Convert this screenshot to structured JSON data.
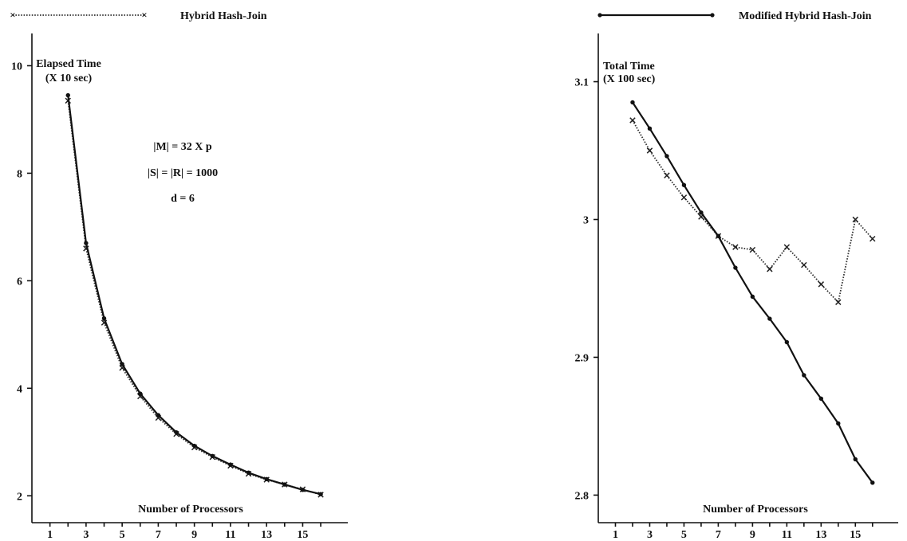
{
  "legend": {
    "dotted_label": "Hybrid Hash-Join",
    "solid_label": "Modified Hybrid Hash-Join"
  },
  "params": {
    "line1": "|M| = 32 X p",
    "line2": "|S| = |R| = 1000",
    "line3": "d = 6"
  },
  "chart_data": [
    {
      "type": "line",
      "ylabel_line1": "Elapsed Time",
      "ylabel_line2": "(X 10 sec)",
      "xlabel": "Number of Processors",
      "xlim": [
        0,
        17.5
      ],
      "ylim": [
        1.5,
        10.6
      ],
      "xticks": [
        1,
        3,
        5,
        7,
        9,
        11,
        13,
        15
      ],
      "yticks": [
        2,
        4,
        6,
        8,
        10
      ],
      "series": [
        {
          "name": "Hybrid Hash-Join",
          "style": "dotted",
          "marker": "x",
          "x": [
            2,
            3,
            4,
            5,
            6,
            7,
            8,
            9,
            10,
            11,
            12,
            13,
            14,
            15,
            16
          ],
          "y": [
            9.35,
            6.6,
            5.22,
            4.38,
            3.85,
            3.45,
            3.15,
            2.9,
            2.72,
            2.56,
            2.41,
            2.3,
            2.21,
            2.12,
            2.02
          ]
        },
        {
          "name": "Modified Hybrid Hash-Join",
          "style": "solid",
          "marker": "dot",
          "x": [
            2,
            3,
            4,
            5,
            6,
            7,
            8,
            9,
            10,
            11,
            12,
            13,
            14,
            15,
            16
          ],
          "y": [
            9.45,
            6.7,
            5.3,
            4.45,
            3.9,
            3.5,
            3.18,
            2.93,
            2.74,
            2.58,
            2.43,
            2.31,
            2.21,
            2.11,
            2.03
          ]
        }
      ]
    },
    {
      "type": "line",
      "ylabel_line1": "Total Time",
      "ylabel_line2": "(X 100 sec)",
      "xlabel": "Number of Processors",
      "xlim": [
        0,
        17.5
      ],
      "ylim": [
        2.78,
        3.135
      ],
      "xticks": [
        1,
        3,
        5,
        7,
        9,
        11,
        13,
        15
      ],
      "yticks": [
        2.8,
        2.9,
        3,
        3.1
      ],
      "ytick_labels": [
        "2.8",
        "2.9",
        "3",
        "3.1"
      ],
      "series": [
        {
          "name": "Hybrid Hash-Join",
          "style": "dotted",
          "marker": "x",
          "x": [
            2,
            3,
            4,
            5,
            6,
            7,
            8,
            9,
            10,
            11,
            12,
            13,
            14,
            15,
            16
          ],
          "y": [
            3.072,
            3.05,
            3.032,
            3.016,
            3.002,
            2.988,
            2.98,
            2.978,
            2.964,
            2.98,
            2.967,
            2.953,
            2.94,
            3.0,
            2.986
          ]
        },
        {
          "name": "Modified Hybrid Hash-Join",
          "style": "solid",
          "marker": "dot",
          "x": [
            2,
            3,
            4,
            5,
            6,
            7,
            8,
            9,
            10,
            11,
            12,
            13,
            14,
            15,
            16
          ],
          "y": [
            3.085,
            3.066,
            3.046,
            3.025,
            3.005,
            2.988,
            2.965,
            2.944,
            2.928,
            2.911,
            2.887,
            2.87,
            2.852,
            2.826,
            2.809
          ]
        }
      ]
    }
  ]
}
